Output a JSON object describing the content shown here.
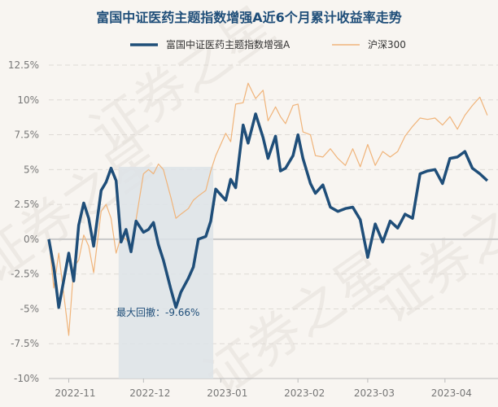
{
  "chart_data": {
    "type": "line",
    "title": "富国中证医药主题指数增强A近6个月累计收益率走势",
    "legend": {
      "placement": "top-center"
    },
    "watermark": "证券之星",
    "ylim": [
      -10,
      12.5
    ],
    "y_ticks": [
      "12.5%",
      "10%",
      "7.5%",
      "5%",
      "2.5%",
      "0%",
      "-2.5%",
      "-5%",
      "-7.5%",
      "-10%"
    ],
    "x_ticks": [
      "2022-11",
      "2022-12",
      "2023-01",
      "2023-02",
      "2023-03",
      "2023-04"
    ],
    "grid": true,
    "colors": {
      "fund": "#1f4e79",
      "index": "#f0b47a",
      "drawdown": "#dde3e8"
    },
    "max_drawdown": {
      "label": "最大回撤：-9.66%",
      "value": -9.66,
      "from": "2022-11-21",
      "to": "2022-12-29"
    },
    "series": [
      {
        "name": "富国中证医药主题指数增强A",
        "x": [
          "2022-10-24",
          "2022-10-26",
          "2022-10-28",
          "2022-11-01",
          "2022-11-03",
          "2022-11-05",
          "2022-11-07",
          "2022-11-09",
          "2022-11-11",
          "2022-11-14",
          "2022-11-16",
          "2022-11-18",
          "2022-11-20",
          "2022-11-22",
          "2022-11-24",
          "2022-11-26",
          "2022-11-28",
          "2022-12-01",
          "2022-12-03",
          "2022-12-05",
          "2022-12-07",
          "2022-12-09",
          "2022-12-12",
          "2022-12-14",
          "2022-12-16",
          "2022-12-19",
          "2022-12-21",
          "2022-12-23",
          "2022-12-26",
          "2022-12-28",
          "2022-12-30",
          "2023-01-03",
          "2023-01-05",
          "2023-01-07",
          "2023-01-10",
          "2023-01-12",
          "2023-01-15",
          "2023-01-18",
          "2023-01-20",
          "2023-01-23",
          "2023-01-25",
          "2023-01-27",
          "2023-01-30",
          "2023-02-01",
          "2023-02-03",
          "2023-02-06",
          "2023-02-08",
          "2023-02-11",
          "2023-02-14",
          "2023-02-17",
          "2023-02-20",
          "2023-02-23",
          "2023-02-26",
          "2023-03-01",
          "2023-03-04",
          "2023-03-07",
          "2023-03-10",
          "2023-03-13",
          "2023-03-16",
          "2023-03-19",
          "2023-03-22",
          "2023-03-25",
          "2023-03-28",
          "2023-03-31",
          "2023-04-03",
          "2023-04-06",
          "2023-04-09",
          "2023-04-12",
          "2023-04-15",
          "2023-04-18"
        ],
        "values": [
          0,
          -2.0,
          -4.9,
          -1.0,
          -3.0,
          1.0,
          2.6,
          1.5,
          -0.5,
          3.5,
          4.1,
          5.1,
          4.2,
          -0.2,
          0.7,
          -0.9,
          1.3,
          0.5,
          0.7,
          1.2,
          -0.4,
          -1.5,
          -3.6,
          -4.9,
          -3.8,
          -2.8,
          -2.0,
          0,
          0.2,
          1.3,
          3.6,
          2.8,
          4.3,
          3.7,
          8.2,
          6.9,
          9.0,
          7.3,
          5.8,
          7.4,
          4.9,
          5.1,
          6.0,
          7.5,
          5.8,
          4.0,
          3.3,
          3.9,
          2.3,
          2.0,
          2.2,
          2.3,
          1.4,
          -1.3,
          1.1,
          -0.2,
          1.3,
          0.8,
          1.8,
          1.5,
          4.7,
          4.9,
          5.0,
          4.0,
          5.8,
          5.9,
          6.3,
          5.1,
          4.7,
          4.2
        ]
      },
      {
        "name": "沪深300",
        "x": [
          "2022-10-24",
          "2022-10-26",
          "2022-10-28",
          "2022-11-01",
          "2022-11-03",
          "2022-11-05",
          "2022-11-07",
          "2022-11-09",
          "2022-11-11",
          "2022-11-14",
          "2022-11-16",
          "2022-11-18",
          "2022-11-20",
          "2022-11-22",
          "2022-11-24",
          "2022-11-26",
          "2022-11-28",
          "2022-12-01",
          "2022-12-03",
          "2022-12-05",
          "2022-12-07",
          "2022-12-09",
          "2022-12-12",
          "2022-12-14",
          "2022-12-16",
          "2022-12-19",
          "2022-12-21",
          "2022-12-23",
          "2022-12-26",
          "2022-12-28",
          "2022-12-30",
          "2023-01-03",
          "2023-01-05",
          "2023-01-07",
          "2023-01-10",
          "2023-01-12",
          "2023-01-15",
          "2023-01-18",
          "2023-01-20",
          "2023-01-23",
          "2023-01-25",
          "2023-01-27",
          "2023-01-30",
          "2023-02-01",
          "2023-02-03",
          "2023-02-06",
          "2023-02-08",
          "2023-02-11",
          "2023-02-14",
          "2023-02-17",
          "2023-02-20",
          "2023-02-23",
          "2023-02-26",
          "2023-03-01",
          "2023-03-04",
          "2023-03-07",
          "2023-03-10",
          "2023-03-13",
          "2023-03-16",
          "2023-03-19",
          "2023-03-22",
          "2023-03-25",
          "2023-03-28",
          "2023-03-31",
          "2023-04-03",
          "2023-04-06",
          "2023-04-09",
          "2023-04-12",
          "2023-04-15",
          "2023-04-18"
        ],
        "values": [
          0,
          -3.5,
          -1.0,
          -6.9,
          -2.0,
          -1.5,
          0.3,
          -0.5,
          -2.4,
          2.0,
          2.5,
          1.5,
          -1.0,
          0.2,
          0.0,
          -0.5,
          1.4,
          4.7,
          5.0,
          4.7,
          5.4,
          5.0,
          3.0,
          1.5,
          1.8,
          2.2,
          2.8,
          3.1,
          3.5,
          4.9,
          6.0,
          7.6,
          7.0,
          9.7,
          9.8,
          11.2,
          10.1,
          10.7,
          8.5,
          9.5,
          8.8,
          8.3,
          9.6,
          9.7,
          7.7,
          7.5,
          6.0,
          5.9,
          6.5,
          5.8,
          5.3,
          6.5,
          5.2,
          6.8,
          5.3,
          6.3,
          5.9,
          6.3,
          7.4,
          8.1,
          8.7,
          8.6,
          8.7,
          8.2,
          8.8,
          7.9,
          8.9,
          9.6,
          10.2,
          8.9
        ]
      }
    ]
  }
}
